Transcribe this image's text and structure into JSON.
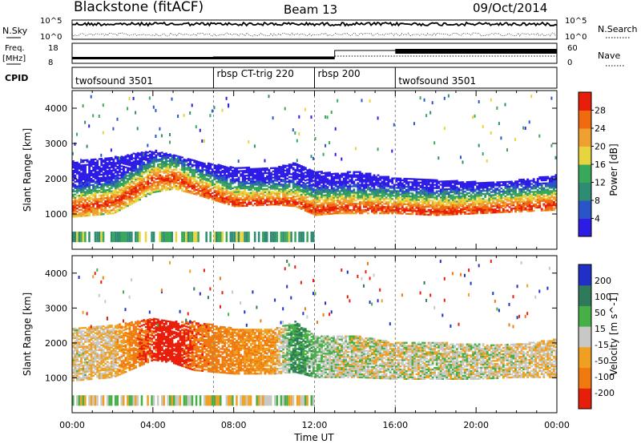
{
  "header": {
    "station": "Blackstone (fitACF)",
    "beam": "Beam 13",
    "date": "09/Oct/2014"
  },
  "top_panel": {
    "left_label": "N.Sky",
    "right_label": "N.Search",
    "left_ticks": [
      "10^5",
      "10^0"
    ],
    "right_ticks": [
      "10^5",
      "10^0"
    ]
  },
  "freq_panel": {
    "left_label_1": "Freq.",
    "left_label_2": "[MHz]",
    "right_label": "Nave",
    "left_ticks": [
      "18",
      "8"
    ],
    "right_ticks": [
      "60",
      "0"
    ]
  },
  "cpid_panel": {
    "label": "CPID",
    "segments": [
      {
        "name": "twofsound 3501",
        "start_hour": 0
      },
      {
        "name": "rbsp CT-trig 220",
        "start_hour": 7
      },
      {
        "name": "rbsp 200",
        "start_hour": 12
      },
      {
        "name": "twofsound 3501",
        "start_hour": 16
      }
    ]
  },
  "colors": {
    "power": [
      "#2d1be6",
      "#2a55c8",
      "#2e8c72",
      "#3aa85a",
      "#e8d43c",
      "#f0a030",
      "#f06a10",
      "#e81e0a"
    ],
    "velocity": [
      "#1f2fc8",
      "#2f7a5a",
      "#46b046",
      "#c8c8c4",
      "#f0a020",
      "#f07a10",
      "#e81e0a"
    ]
  },
  "chart_data": [
    {
      "type": "heatmap",
      "panel": "power",
      "ylabel": "Slant Range [km]",
      "xlabel": "",
      "ylim": [
        0,
        4500
      ],
      "yticks": [
        1000,
        2000,
        3000,
        4000
      ],
      "xlim_hours": [
        0,
        24
      ],
      "colorbar": {
        "label": "Power [dB]",
        "ticks": [
          "4",
          "8",
          "12",
          "16",
          "20",
          "24",
          "28"
        ],
        "range": [
          0,
          32
        ]
      },
      "backscatter_band": {
        "hours": [
          0,
          2,
          4,
          5,
          6,
          8,
          10,
          11,
          12,
          13,
          14,
          16,
          18,
          20,
          22,
          24
        ],
        "lower_km": [
          900,
          1000,
          1600,
          1700,
          1550,
          1200,
          1250,
          1200,
          950,
          1000,
          1000,
          1000,
          950,
          1000,
          1050,
          1100
        ],
        "upper_km": [
          2500,
          2600,
          2800,
          2650,
          2500,
          2300,
          2300,
          2450,
          2200,
          2150,
          2200,
          2000,
          1950,
          1900,
          1950,
          2100
        ],
        "peak_km": [
          1150,
          1300,
          1950,
          2000,
          1700,
          1300,
          1300,
          1300,
          1100,
          1150,
          1150,
          1100,
          1050,
          1080,
          1150,
          1250
        ]
      }
    },
    {
      "type": "heatmap",
      "panel": "velocity",
      "ylabel": "Slant Range [km]",
      "xlabel": "Time UT",
      "ylim": [
        0,
        4500
      ],
      "yticks": [
        1000,
        2000,
        3000,
        4000
      ],
      "xticks": [
        "00:00",
        "04:00",
        "08:00",
        "12:00",
        "16:00",
        "20:00",
        "00:00"
      ],
      "xlim_hours": [
        0,
        24
      ],
      "colorbar": {
        "label": "Velocity [m s^-1]",
        "ticks": [
          "200",
          "100",
          "50",
          "15",
          "-15",
          "-50",
          "-100",
          "-200"
        ],
        "range": [
          -250,
          250
        ]
      },
      "backscatter_band": {
        "hours": [
          0,
          2,
          4,
          5,
          6,
          8,
          10,
          11,
          12,
          13,
          14,
          16,
          18,
          20,
          22,
          24
        ],
        "lower_km": [
          900,
          1000,
          1500,
          1400,
          1200,
          1100,
          1100,
          1150,
          1000,
          1000,
          1000,
          950,
          950,
          950,
          1000,
          1000
        ],
        "upper_km": [
          2400,
          2500,
          2700,
          2600,
          2600,
          2400,
          2400,
          2600,
          2200,
          2200,
          2200,
          2000,
          2000,
          1950,
          1950,
          2100
        ],
        "velocity_ms": [
          -10,
          -20,
          -120,
          -150,
          -80,
          -60,
          -40,
          60,
          20,
          5,
          0,
          -5,
          0,
          0,
          -10,
          -15
        ]
      }
    }
  ]
}
